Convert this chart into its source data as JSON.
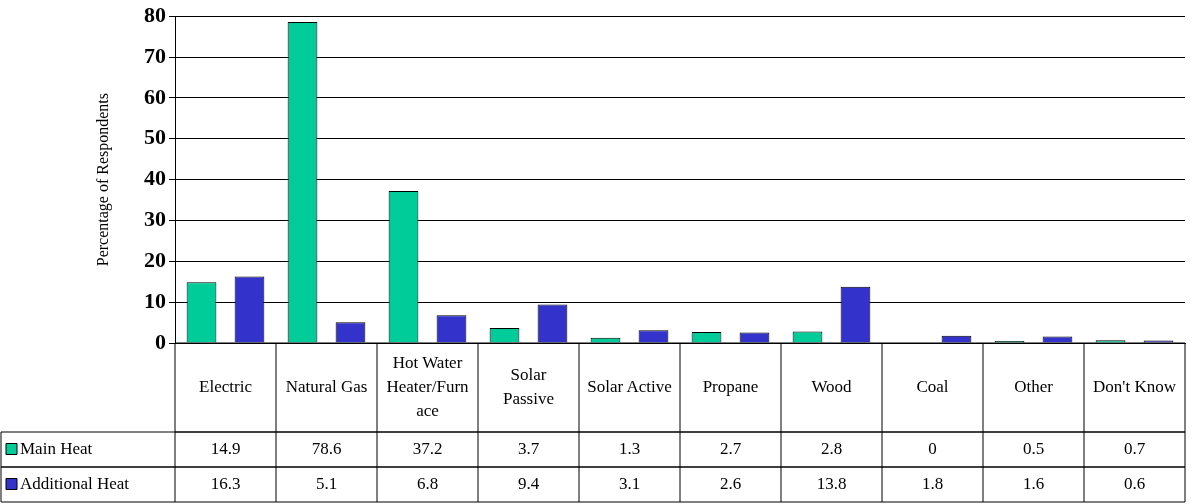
{
  "chart_data": {
    "type": "bar",
    "ylabel": "Percentage of Respondents",
    "categories": [
      "Electric",
      "Natural Gas",
      "Hot Water Heater/Furnace",
      "Solar Passive",
      "Solar Active",
      "Propane",
      "Wood",
      "Coal",
      "Other",
      "Don't Know"
    ],
    "series": [
      {
        "name": "Main Heat",
        "color": "#00cc99",
        "values": [
          14.9,
          78.6,
          37.2,
          3.7,
          1.3,
          2.7,
          2.8,
          0,
          0.5,
          0.7
        ]
      },
      {
        "name": "Additional Heat",
        "color": "#3333cc",
        "values": [
          16.3,
          5.1,
          6.8,
          9.4,
          3.1,
          2.6,
          13.8,
          1.8,
          1.6,
          0.6
        ]
      }
    ],
    "ylim": [
      0,
      80
    ],
    "yticks": [
      0,
      10,
      20,
      30,
      40,
      50,
      60,
      70,
      80
    ],
    "grid": "y",
    "legend": "bottom left",
    "data_labels": true
  }
}
